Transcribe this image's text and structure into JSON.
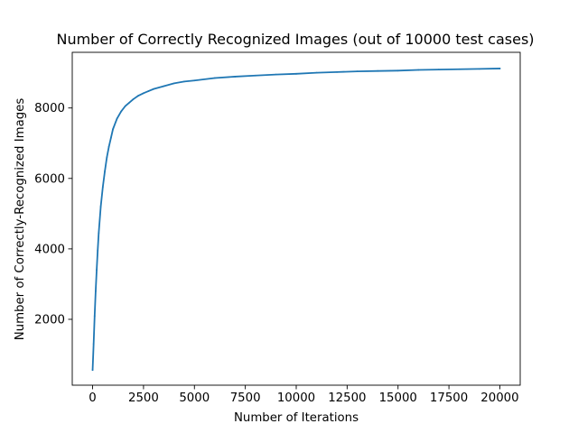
{
  "chart_data": {
    "type": "line",
    "title": "Number of Correctly Recognized Images (out of 10000 test cases)",
    "xlabel": "Number of Iterations",
    "ylabel": "Number of Correctly-Recognized Images",
    "xlim": [
      -1000,
      21000
    ],
    "ylim": [
      130,
      9580
    ],
    "xticks": [
      0,
      2500,
      5000,
      7500,
      10000,
      12500,
      15000,
      17500,
      20000
    ],
    "xtick_labels": [
      "0",
      "2500",
      "5000",
      "7500",
      "10000",
      "12500",
      "15000",
      "17500",
      "20000"
    ],
    "yticks": [
      2000,
      4000,
      6000,
      8000
    ],
    "ytick_labels": [
      "2000",
      "4000",
      "6000",
      "8000"
    ],
    "grid": false,
    "legend": "none",
    "series": [
      {
        "color": "#1f77b4",
        "x": [
          0,
          50,
          100,
          150,
          200,
          250,
          300,
          400,
          500,
          600,
          700,
          800,
          900,
          1000,
          1200,
          1400,
          1600,
          1800,
          2000,
          2250,
          2500,
          2750,
          3000,
          3500,
          4000,
          4500,
          5000,
          6000,
          7000,
          8000,
          9000,
          10000,
          11000,
          12000,
          13000,
          14000,
          15000,
          16000,
          17000,
          18000,
          19000,
          20000
        ],
        "y": [
          560,
          1300,
          2100,
          2800,
          3400,
          3950,
          4450,
          5200,
          5750,
          6200,
          6600,
          6900,
          7150,
          7400,
          7700,
          7900,
          8050,
          8150,
          8250,
          8350,
          8420,
          8480,
          8540,
          8620,
          8700,
          8750,
          8780,
          8850,
          8890,
          8920,
          8950,
          8970,
          9000,
          9020,
          9040,
          9050,
          9060,
          9080,
          9090,
          9100,
          9110,
          9120
        ]
      }
    ]
  }
}
